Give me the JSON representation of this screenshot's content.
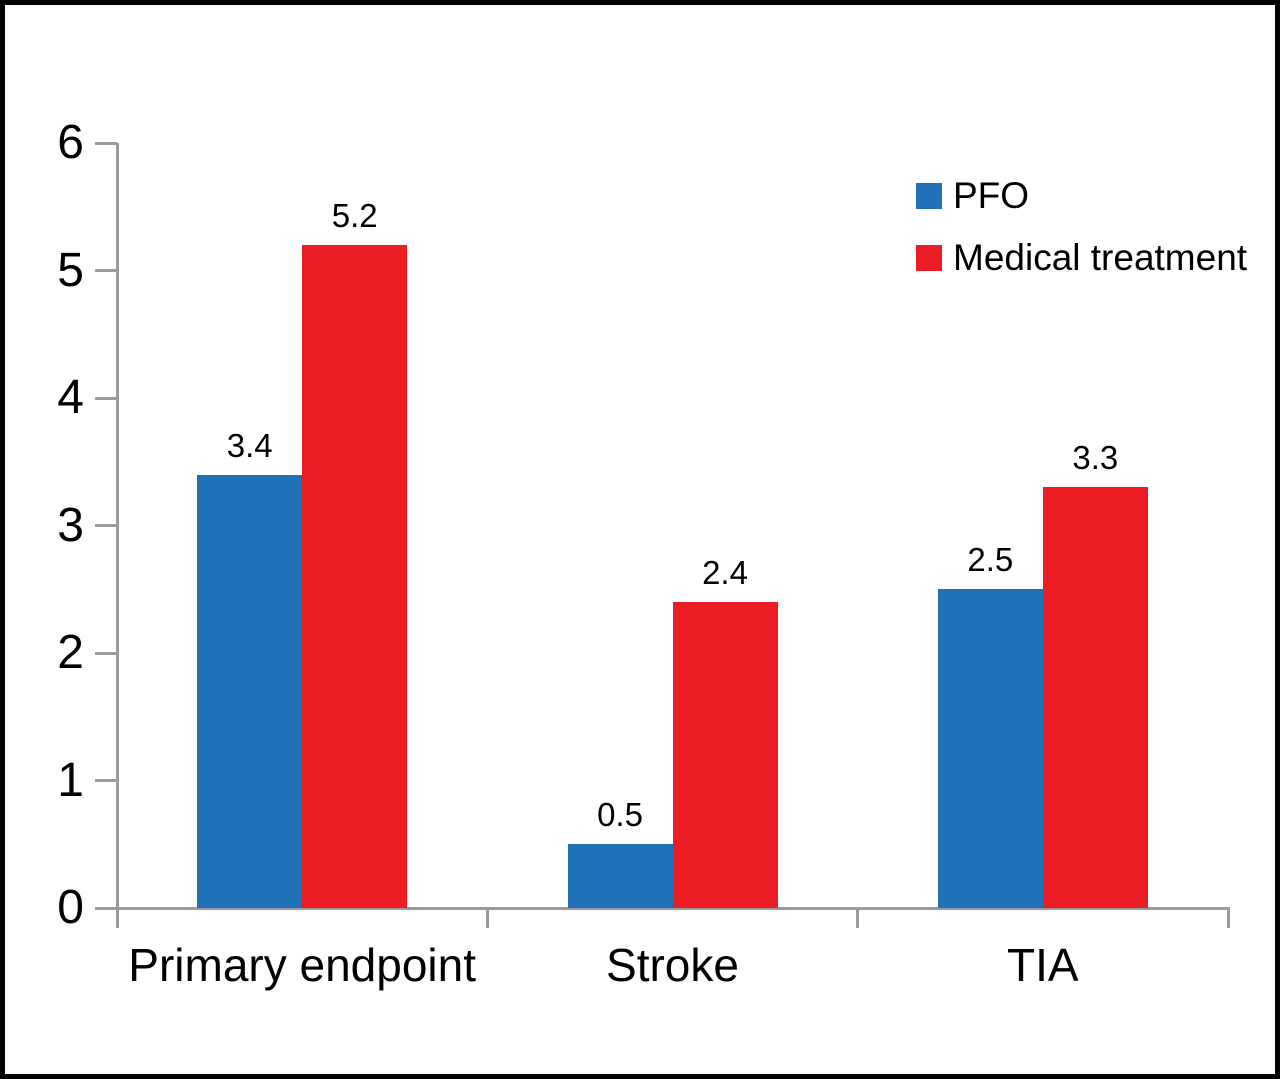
{
  "figure": {
    "background": "#ffffff",
    "border_color": "#000000",
    "axis_color": "#9b9b9b",
    "text_color": "#000000"
  },
  "chart_data": {
    "type": "bar",
    "title": "",
    "xlabel": "",
    "ylabel": "",
    "categories": [
      "Primary endpoint",
      "Stroke",
      "TIA"
    ],
    "series": [
      {
        "name": "PFO",
        "color": "#1f72b8",
        "values": [
          3.4,
          0.5,
          2.5
        ],
        "labels": [
          "3.4",
          "0.5",
          "2.5"
        ]
      },
      {
        "name": "Medical treatment",
        "color": "#ec1c24",
        "values": [
          5.2,
          2.4,
          3.3
        ],
        "labels": [
          "5.2",
          "2.4",
          "3.3"
        ]
      }
    ],
    "ylim": [
      0,
      6
    ],
    "yticks": [
      "0",
      "1",
      "2",
      "3",
      "4",
      "5",
      "6"
    ],
    "grid": false,
    "legend_position": "top-right"
  }
}
